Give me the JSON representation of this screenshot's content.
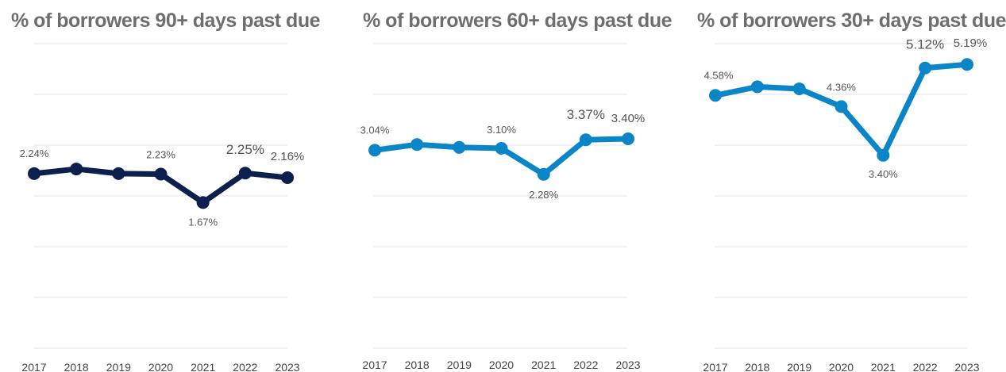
{
  "chart_data": [
    {
      "type": "line",
      "title": "% of borrowers 90+ days past due",
      "xlabel": "",
      "ylabel": "",
      "categories": [
        "2017",
        "2018",
        "2019",
        "2020",
        "2021",
        "2022",
        "2023"
      ],
      "series": [
        {
          "values": [
            2.24,
            2.33,
            2.24,
            2.23,
            1.67,
            2.25,
            2.16
          ],
          "color": "#0d1f4c"
        }
      ],
      "data_labels": [
        "2.24%",
        "",
        "",
        "2.23%",
        "1.67%",
        "2.25%",
        "2.16%"
      ],
      "ylim": [
        -1.2,
        4.8
      ],
      "gridlines": 7,
      "grid": true,
      "legend": "none"
    },
    {
      "type": "line",
      "title": "% of borrowers 60+ days past due",
      "xlabel": "",
      "ylabel": "",
      "categories": [
        "2017",
        "2018",
        "2019",
        "2020",
        "2021",
        "2022",
        "2023"
      ],
      "series": [
        {
          "values": [
            3.04,
            3.22,
            3.13,
            3.1,
            2.28,
            3.37,
            3.4
          ],
          "color": "#0a86c8"
        }
      ],
      "data_labels": [
        "3.04%",
        "",
        "",
        "3.10%",
        "2.28%",
        "3.37%",
        "3.40%"
      ],
      "ylim": [
        -3.2,
        6.4
      ],
      "gridlines": 7,
      "grid": true,
      "legend": "none"
    },
    {
      "type": "line",
      "title": "% of borrowers 30+ days past due",
      "xlabel": "",
      "ylabel": "",
      "categories": [
        "2017",
        "2018",
        "2019",
        "2020",
        "2021",
        "2022",
        "2023"
      ],
      "series": [
        {
          "values": [
            4.58,
            4.75,
            4.71,
            4.36,
            3.4,
            5.12,
            5.19
          ],
          "color": "#0a86c8"
        }
      ],
      "data_labels": [
        "4.58%",
        "",
        "",
        "4.36%",
        "3.40%",
        "5.12%",
        "5.19%"
      ],
      "ylim": [
        -0.4,
        5.6
      ],
      "gridlines": 7,
      "grid": true,
      "legend": "none"
    }
  ]
}
